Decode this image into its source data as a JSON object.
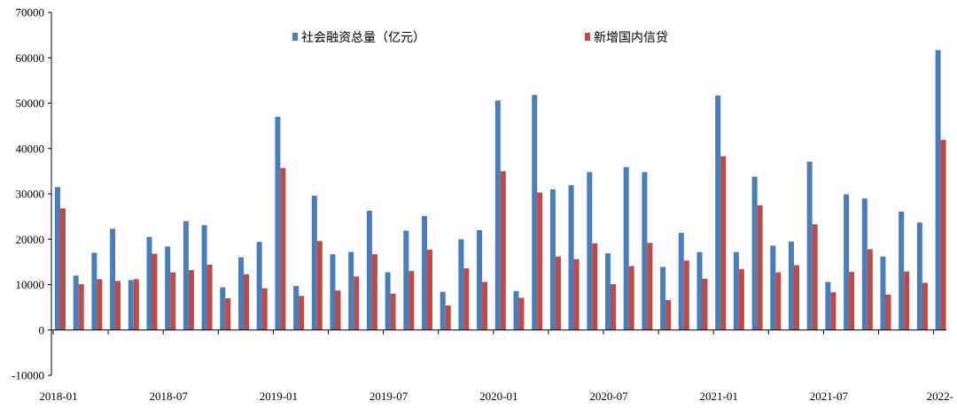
{
  "chart_data": {
    "type": "bar",
    "title": "",
    "xlabel": "",
    "ylabel": "",
    "ylim": [
      -10000,
      70000
    ],
    "yticks": [
      -10000,
      0,
      10000,
      20000,
      30000,
      40000,
      50000,
      60000,
      70000
    ],
    "x_tick_labels": [
      "2018-01",
      "2018-07",
      "2019-01",
      "2019-07",
      "2020-01",
      "2020-07",
      "2021-01",
      "2021-07",
      "2022-"
    ],
    "categories": [
      "2018-01",
      "2018-02",
      "2018-03",
      "2018-04",
      "2018-05",
      "2018-06",
      "2018-07",
      "2018-08",
      "2018-09",
      "2018-10",
      "2018-11",
      "2018-12",
      "2019-01",
      "2019-02",
      "2019-03",
      "2019-04",
      "2019-05",
      "2019-06",
      "2019-07",
      "2019-08",
      "2019-09",
      "2019-10",
      "2019-11",
      "2019-12",
      "2020-01",
      "2020-02",
      "2020-03",
      "2020-04",
      "2020-05",
      "2020-06",
      "2020-07",
      "2020-08",
      "2020-09",
      "2020-10",
      "2020-11",
      "2020-12",
      "2021-01",
      "2021-02",
      "2021-03",
      "2021-04",
      "2021-05",
      "2021-06",
      "2021-07",
      "2021-08",
      "2021-09",
      "2021-10",
      "2021-11",
      "2021-12",
      "2022-01"
    ],
    "series": [
      {
        "name": "社会融资总量（亿元）",
        "color": "#4a7ebb",
        "values": [
          31500,
          12000,
          17000,
          22300,
          11000,
          20500,
          18400,
          24000,
          23100,
          9400,
          16000,
          19400,
          47000,
          9700,
          29600,
          16700,
          17200,
          26300,
          12700,
          21900,
          25100,
          8400,
          20000,
          22000,
          50600,
          8600,
          51800,
          31000,
          31900,
          34800,
          16900,
          35900,
          34800,
          13900,
          21400,
          17200,
          51700,
          17200,
          33800,
          18600,
          19500,
          37100,
          10600,
          29900,
          29000,
          16200,
          26100,
          23700,
          61700
        ]
      },
      {
        "name": "新增国内信贷",
        "color": "#be4b48",
        "values": [
          26800,
          10100,
          11200,
          10800,
          11200,
          16800,
          12700,
          13200,
          14400,
          7000,
          12300,
          9200,
          35700,
          7500,
          19600,
          8700,
          11800,
          16700,
          8000,
          13000,
          17700,
          5400,
          13600,
          10600,
          35000,
          7100,
          30300,
          16200,
          15600,
          19100,
          10100,
          14100,
          19200,
          6600,
          15300,
          11300,
          38300,
          13400,
          27500,
          12700,
          14300,
          23300,
          8300,
          12800,
          17800,
          7800,
          12900,
          10400,
          41900
        ]
      }
    ],
    "legend_position": "top",
    "grid": false
  }
}
